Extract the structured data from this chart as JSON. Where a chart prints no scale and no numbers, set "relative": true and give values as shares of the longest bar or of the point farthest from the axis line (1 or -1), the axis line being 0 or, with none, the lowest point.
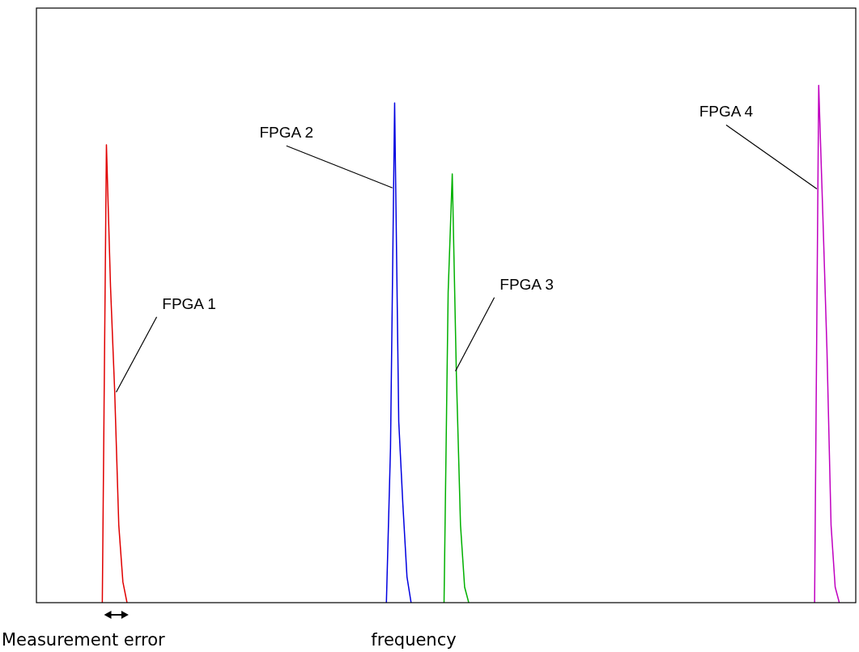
{
  "chart_data": {
    "type": "line",
    "relative": true,
    "xlabel": "frequency",
    "annotations": [
      "Measurement error"
    ],
    "categories": [
      null,
      null,
      null,
      null,
      null,
      null,
      null,
      null,
      null,
      null,
      null,
      null,
      null,
      null,
      null,
      null,
      null,
      null,
      null,
      null,
      null,
      null,
      null,
      null,
      null,
      null,
      null,
      null,
      null,
      null,
      null,
      null,
      null,
      null,
      null,
      null,
      null,
      null,
      null,
      null,
      null,
      null,
      null,
      null,
      null,
      null,
      null,
      null,
      null,
      null,
      null,
      null,
      null,
      null,
      null,
      null,
      null,
      null,
      null,
      null,
      null,
      null,
      null,
      null,
      null,
      null,
      null,
      null,
      null,
      null,
      null,
      null,
      null,
      null,
      null,
      null,
      null,
      null,
      null,
      null,
      null,
      null,
      null,
      null,
      null,
      null,
      null,
      null,
      null,
      null,
      null,
      null,
      null,
      null,
      null,
      null,
      null,
      null,
      null,
      null,
      null,
      null,
      null,
      null,
      null,
      null,
      null,
      null,
      null,
      null,
      null,
      null,
      null,
      null,
      null,
      null,
      null,
      null,
      null,
      null,
      null,
      null,
      null,
      null,
      null,
      null,
      null,
      null,
      null,
      null,
      null,
      null,
      null,
      null,
      null,
      null,
      null,
      null,
      null,
      null,
      null,
      null,
      null,
      null,
      null,
      null,
      null,
      null,
      null,
      null,
      null,
      null,
      null,
      null,
      null,
      null,
      null,
      null,
      null,
      null,
      null,
      null,
      null,
      null,
      null,
      null,
      null,
      null,
      null,
      null,
      null,
      null,
      null,
      null,
      null,
      null,
      null,
      null,
      null,
      null,
      null,
      null,
      null,
      null,
      null,
      null,
      null,
      null,
      null,
      null,
      null,
      null,
      null,
      null,
      null,
      null,
      null,
      null,
      null,
      null
    ],
    "series": [
      {
        "name": "FPGA 1",
        "color": "#e00000",
        "values": [
          null,
          null,
          null,
          null,
          null,
          null,
          null,
          null,
          null,
          null,
          null,
          null,
          null,
          null,
          null,
          null,
          0,
          0.885,
          0.61,
          0.41,
          0.15,
          0.04,
          0,
          null,
          null,
          null,
          null,
          null,
          null,
          null,
          null,
          null,
          null,
          null,
          null,
          null,
          null,
          null,
          null,
          null,
          null,
          null,
          null,
          null,
          null,
          null,
          null,
          null,
          null,
          null,
          null,
          null,
          null,
          null,
          null,
          null,
          null,
          null,
          null,
          null,
          null,
          null,
          null,
          null,
          null,
          null,
          null,
          null,
          null,
          null,
          null,
          null,
          null,
          null,
          null,
          null,
          null,
          null,
          null,
          null,
          null,
          null,
          null,
          null,
          null,
          null,
          null,
          null,
          null,
          null,
          null,
          null,
          null,
          null,
          null,
          null,
          null,
          null,
          null,
          null,
          null,
          null,
          null,
          null,
          null,
          null,
          null,
          null,
          null,
          null,
          null,
          null,
          null,
          null,
          null,
          null,
          null,
          null,
          null,
          null,
          null,
          null,
          null,
          null,
          null,
          null,
          null,
          null,
          null,
          null,
          null,
          null,
          null,
          null,
          null,
          null,
          null,
          null,
          null,
          null,
          null,
          null,
          null,
          null,
          null,
          null,
          null,
          null,
          null,
          null,
          null,
          null,
          null,
          null,
          null,
          null,
          null,
          null,
          null,
          null,
          null,
          null,
          null,
          null,
          null,
          null,
          null,
          null,
          null,
          null,
          null,
          null,
          null,
          null,
          null,
          null,
          null,
          null,
          null,
          null,
          null,
          null,
          null,
          null,
          null,
          null,
          null,
          null,
          null,
          null,
          null,
          null,
          null,
          null,
          null,
          null,
          null,
          null,
          null,
          null
        ]
      },
      {
        "name": "FPGA 2",
        "color": "#0000e0",
        "values": [
          null,
          null,
          null,
          null,
          null,
          null,
          null,
          null,
          null,
          null,
          null,
          null,
          null,
          null,
          null,
          null,
          null,
          null,
          null,
          null,
          null,
          null,
          null,
          null,
          null,
          null,
          null,
          null,
          null,
          null,
          null,
          null,
          null,
          null,
          null,
          null,
          null,
          null,
          null,
          null,
          null,
          null,
          null,
          null,
          null,
          null,
          null,
          null,
          null,
          null,
          null,
          null,
          null,
          null,
          null,
          null,
          null,
          null,
          null,
          null,
          null,
          null,
          null,
          null,
          null,
          null,
          null,
          null,
          null,
          null,
          null,
          null,
          null,
          null,
          null,
          null,
          null,
          null,
          null,
          null,
          null,
          null,
          null,
          null,
          null,
          0,
          0.3,
          0.966,
          0.35,
          0.19,
          0.05,
          0,
          null,
          null,
          null,
          null,
          null,
          null,
          null,
          null,
          null,
          null,
          null,
          null,
          null,
          null,
          null,
          null,
          null,
          null,
          null,
          null,
          null,
          null,
          null,
          null,
          null,
          null,
          null,
          null,
          null,
          null,
          null,
          null,
          null,
          null,
          null,
          null,
          null,
          null,
          null,
          null,
          null,
          null,
          null,
          null,
          null,
          null,
          null,
          null,
          null,
          null,
          null,
          null,
          null,
          null,
          null,
          null,
          null,
          null,
          null,
          null,
          null,
          null,
          null,
          null,
          null,
          null,
          null,
          null,
          null,
          null,
          null,
          null,
          null,
          null,
          null,
          null,
          null,
          null,
          null,
          null,
          null,
          null,
          null,
          null,
          null,
          null,
          null,
          null,
          null,
          null,
          null,
          null,
          null,
          null,
          null,
          null,
          null,
          null,
          null,
          null,
          null,
          null,
          null,
          null,
          null,
          null,
          null,
          null
        ]
      },
      {
        "name": "FPGA 3",
        "color": "#00b000",
        "values": [
          null,
          null,
          null,
          null,
          null,
          null,
          null,
          null,
          null,
          null,
          null,
          null,
          null,
          null,
          null,
          null,
          null,
          null,
          null,
          null,
          null,
          null,
          null,
          null,
          null,
          null,
          null,
          null,
          null,
          null,
          null,
          null,
          null,
          null,
          null,
          null,
          null,
          null,
          null,
          null,
          null,
          null,
          null,
          null,
          null,
          null,
          null,
          null,
          null,
          null,
          null,
          null,
          null,
          null,
          null,
          null,
          null,
          null,
          null,
          null,
          null,
          null,
          null,
          null,
          null,
          null,
          null,
          null,
          null,
          null,
          null,
          null,
          null,
          null,
          null,
          null,
          null,
          null,
          null,
          null,
          null,
          null,
          null,
          null,
          null,
          null,
          null,
          null,
          null,
          null,
          null,
          null,
          null,
          null,
          null,
          null,
          null,
          null,
          null,
          0,
          0.6,
          0.829,
          0.44,
          0.15,
          0.03,
          0,
          null,
          null,
          null,
          null,
          null,
          null,
          null,
          null,
          null,
          null,
          null,
          null,
          null,
          null,
          null,
          null,
          null,
          null,
          null,
          null,
          null,
          null,
          null,
          null,
          null,
          null,
          null,
          null,
          null,
          null,
          null,
          null,
          null,
          null,
          null,
          null,
          null,
          null,
          null,
          null,
          null,
          null,
          null,
          null,
          null,
          null,
          null,
          null,
          null,
          null,
          null,
          null,
          null,
          null,
          null,
          null,
          null,
          null,
          null,
          null,
          null,
          null,
          null,
          null,
          null,
          null,
          null,
          null,
          null,
          null,
          null,
          null,
          null,
          null,
          null,
          null,
          null,
          null,
          null,
          null,
          null,
          null,
          null,
          null,
          null,
          null,
          null,
          null,
          null,
          null,
          null,
          null,
          null,
          null
        ]
      },
      {
        "name": "FPGA 4",
        "color": "#c000c0",
        "values": [
          null,
          null,
          null,
          null,
          null,
          null,
          null,
          null,
          null,
          null,
          null,
          null,
          null,
          null,
          null,
          null,
          null,
          null,
          null,
          null,
          null,
          null,
          null,
          null,
          null,
          null,
          null,
          null,
          null,
          null,
          null,
          null,
          null,
          null,
          null,
          null,
          null,
          null,
          null,
          null,
          null,
          null,
          null,
          null,
          null,
          null,
          null,
          null,
          null,
          null,
          null,
          null,
          null,
          null,
          null,
          null,
          null,
          null,
          null,
          null,
          null,
          null,
          null,
          null,
          null,
          null,
          null,
          null,
          null,
          null,
          null,
          null,
          null,
          null,
          null,
          null,
          null,
          null,
          null,
          null,
          null,
          null,
          null,
          null,
          null,
          null,
          null,
          null,
          null,
          null,
          null,
          null,
          null,
          null,
          null,
          null,
          null,
          null,
          null,
          null,
          null,
          null,
          null,
          null,
          null,
          null,
          null,
          null,
          null,
          null,
          null,
          null,
          null,
          null,
          null,
          null,
          null,
          null,
          null,
          null,
          null,
          null,
          null,
          null,
          null,
          null,
          null,
          null,
          null,
          null,
          null,
          null,
          null,
          null,
          null,
          null,
          null,
          null,
          null,
          null,
          null,
          null,
          null,
          null,
          null,
          null,
          null,
          null,
          null,
          null,
          null,
          null,
          null,
          null,
          null,
          null,
          null,
          null,
          null,
          null,
          null,
          null,
          null,
          null,
          null,
          null,
          null,
          null,
          null,
          null,
          null,
          null,
          null,
          null,
          null,
          null,
          null,
          null,
          null,
          null,
          null,
          null,
          null,
          null,
          null,
          null,
          null,
          null,
          null,
          0,
          1,
          0.75,
          0.49,
          0.15,
          0.03,
          0,
          null,
          null,
          null,
          null
        ]
      }
    ]
  }
}
